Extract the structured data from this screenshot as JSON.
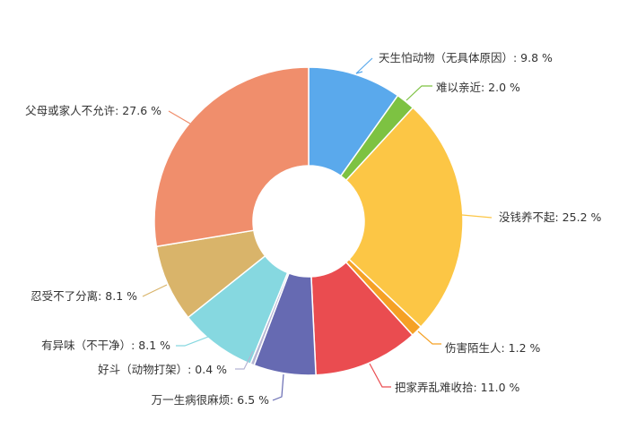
{
  "chart_data": {
    "type": "pie",
    "variant": "donut",
    "title": "",
    "legend": "none",
    "slices": [
      {
        "label": "天生怕动物（无具体原因）",
        "value": 9.8,
        "display": "天生怕动物（无具体原因）: 9.8 %",
        "color": "#5aa9ec"
      },
      {
        "label": "难以亲近",
        "value": 2.0,
        "display": "难以亲近: 2.0 %",
        "color": "#7dc242"
      },
      {
        "label": "没钱养不起",
        "value": 25.2,
        "display": "没钱养不起: 25.2 %",
        "color": "#fcc645"
      },
      {
        "label": "伤害陌生人",
        "value": 1.2,
        "display": "伤害陌生人: 1.2 %",
        "color": "#f5a125"
      },
      {
        "label": "把家弄乱难收拾",
        "value": 11.0,
        "display": "把家弄乱难收拾: 11.0 %",
        "color": "#ea4c50"
      },
      {
        "label": "万一生病很麻烦",
        "value": 6.5,
        "display": "万一生病很麻烦: 6.5 %",
        "color": "#666ab2"
      },
      {
        "label": "好斗（动物打架）",
        "value": 0.4,
        "display": "好斗（动物打架）: 0.4 %",
        "color": "#b5b5d3"
      },
      {
        "label": "有异味（不干净）",
        "value": 8.1,
        "display": "有异味（不干净）: 8.1 %",
        "color": "#86d8e0"
      },
      {
        "label": "忍受不了分离",
        "value": 8.1,
        "display": "忍受不了分离: 8.1 %",
        "color": "#d9b46a"
      },
      {
        "label": "父母或家人不允许",
        "value": 27.6,
        "display": "父母或家人不允许: 27.6 %",
        "color": "#f08e6c"
      }
    ]
  }
}
